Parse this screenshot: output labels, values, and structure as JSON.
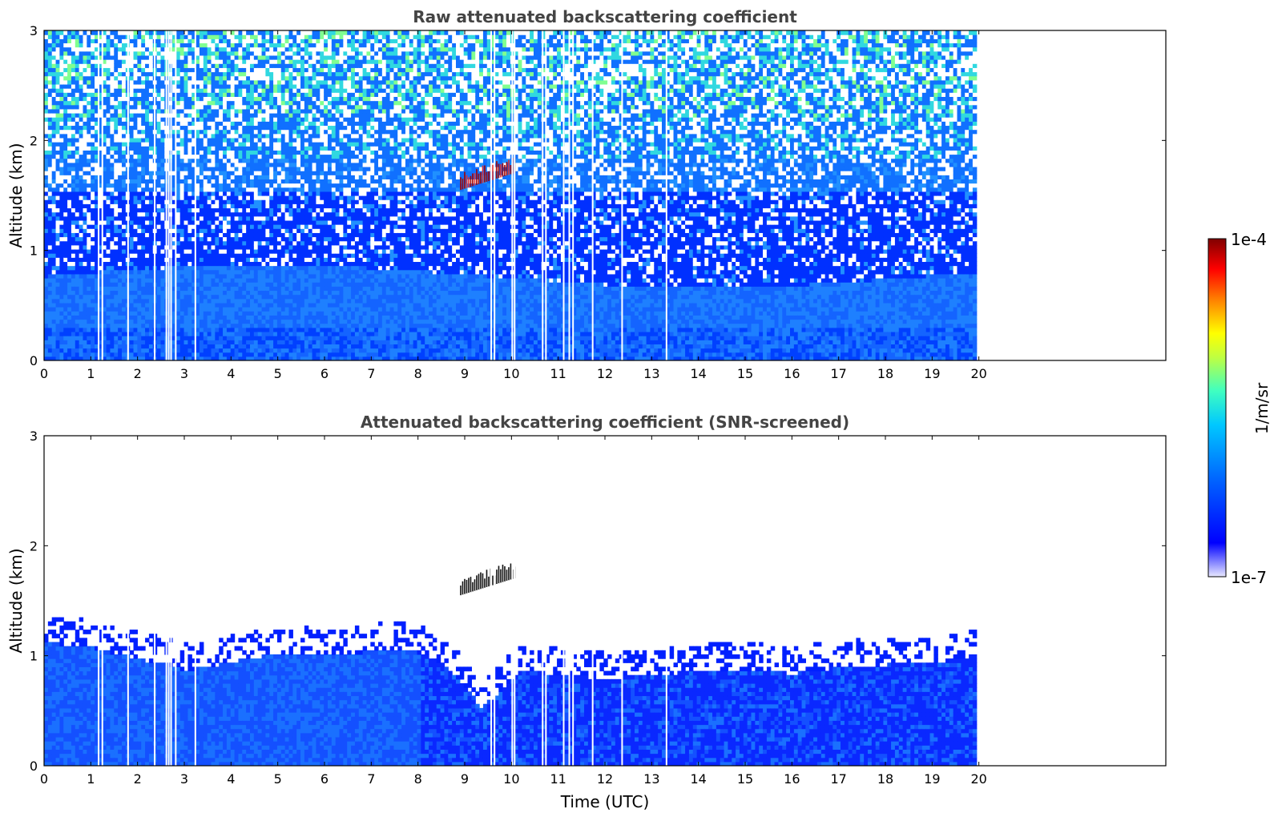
{
  "chart_data": [
    {
      "type": "heatmap",
      "title": "Raw attenuated backscattering coefficient",
      "xlabel": "",
      "ylabel": "Altitude (km)",
      "xlim": [
        0,
        24
      ],
      "ylim": [
        0,
        3
      ],
      "x_ticks": [
        0,
        1,
        2,
        3,
        4,
        5,
        6,
        7,
        8,
        9,
        10,
        11,
        12,
        13,
        14,
        15,
        16,
        17,
        18,
        19,
        20
      ],
      "y_ticks": [
        0,
        1,
        2,
        3
      ],
      "data_extent_x": [
        0,
        19.95
      ],
      "gaps_utc": [
        1.15,
        1.23,
        1.78,
        2.35,
        2.6,
        2.65,
        2.7,
        2.8,
        3.22,
        9.55,
        9.62,
        10.0,
        10.05,
        10.65,
        10.72,
        11.1,
        11.22,
        11.3,
        11.72,
        12.35,
        13.3
      ],
      "features": [
        {
          "kind": "cloud",
          "x": [
            8.9,
            10.1
          ],
          "y": [
            1.55,
            1.75
          ],
          "level": "1e-4"
        },
        {
          "kind": "boundary_layer",
          "x": [
            0,
            19.95
          ],
          "y": [
            0,
            0.8
          ],
          "level": "1e-6"
        }
      ],
      "colorbar": {
        "label": "1/m/sr",
        "min_label": "1e-7",
        "max_label": "1e-4",
        "scale": "log"
      }
    },
    {
      "type": "heatmap",
      "title": "Attenuated backscattering coefficient (SNR-screened)",
      "xlabel": "Time (UTC)",
      "ylabel": "Altitude (km)",
      "xlim": [
        0,
        24
      ],
      "ylim": [
        0,
        3
      ],
      "x_ticks": [
        0,
        1,
        2,
        3,
        4,
        5,
        6,
        7,
        8,
        9,
        10,
        11,
        12,
        13,
        14,
        15,
        16,
        17,
        18,
        19,
        20
      ],
      "y_ticks": [
        0,
        1,
        2,
        3
      ],
      "data_extent_x": [
        0,
        19.95
      ],
      "boundary_layer_top_km": [
        [
          0,
          1.1
        ],
        [
          1,
          1.05
        ],
        [
          2,
          0.95
        ],
        [
          2.6,
          0.9
        ],
        [
          3,
          0.85
        ],
        [
          3.5,
          0.88
        ],
        [
          4,
          0.93
        ],
        [
          5,
          1.0
        ],
        [
          6,
          0.98
        ],
        [
          7,
          1.02
        ],
        [
          7.8,
          1.05
        ],
        [
          8.5,
          0.9
        ],
        [
          9,
          0.7
        ],
        [
          9.3,
          0.5
        ],
        [
          9.7,
          0.65
        ],
        [
          10.2,
          0.85
        ],
        [
          11,
          0.8
        ],
        [
          12,
          0.78
        ],
        [
          13,
          0.8
        ],
        [
          14,
          0.85
        ],
        [
          15,
          0.85
        ],
        [
          16,
          0.82
        ],
        [
          17,
          0.88
        ],
        [
          18,
          0.9
        ],
        [
          19,
          0.9
        ],
        [
          19.95,
          1.0
        ]
      ],
      "features": [
        {
          "kind": "cloud",
          "x": [
            8.9,
            10.1
          ],
          "y": [
            1.55,
            1.75
          ],
          "level": "saturated"
        }
      ]
    }
  ],
  "colors": {
    "colormap": [
      "#ffffff",
      "#0000ff",
      "#0080ff",
      "#00ffff",
      "#80ff80",
      "#ffff00",
      "#ff8000",
      "#ff0000",
      "#800000"
    ],
    "title_text": "#444444"
  }
}
